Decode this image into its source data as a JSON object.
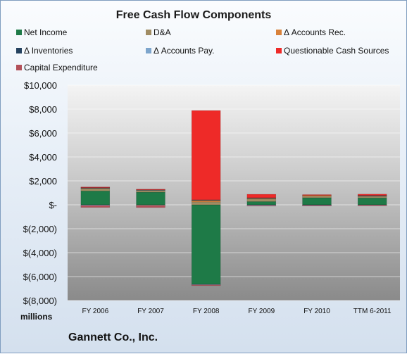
{
  "title": "Free Cash Flow Components",
  "units_label": "millions",
  "company": "Gannett Co., Inc.",
  "colors": {
    "Net Income": "#1e7a47",
    "D&A": "#a08c63",
    "Δ Accounts Rec.": "#d9823a",
    "Δ Inventories": "#25425f",
    "Δ Accounts Pay.": "#7da5cc",
    "Questionable Cash Sources": "#ee2a28",
    "Capital Expenditure": "#b35059"
  },
  "chart_data": {
    "type": "bar",
    "stacked": true,
    "title": "Free Cash Flow Components",
    "categories": [
      "FY 2006",
      "FY 2007",
      "FY 2008",
      "FY 2009",
      "FY 2010",
      "TTM 6-2011"
    ],
    "yticks": [
      "$10,000",
      "$8,000",
      "$6,000",
      "$4,000",
      "$2,000",
      "$-",
      "$(2,000)",
      "$(4,000)",
      "$(6,000)",
      "$(8,000)"
    ],
    "ylim": [
      -8000,
      10000
    ],
    "grid": true,
    "legend_position": "top",
    "series": [
      {
        "name": "Net Income",
        "values": [
          1160,
          1055,
          -6650,
          270,
          590,
          580
        ]
      },
      {
        "name": "D&A",
        "values": [
          200,
          200,
          240,
          210,
          190,
          180
        ]
      },
      {
        "name": "Δ Accounts Rec.",
        "values": [
          60,
          -30,
          140,
          90,
          10,
          10
        ]
      },
      {
        "name": "Δ Inventories",
        "values": [
          20,
          10,
          40,
          20,
          -10,
          10
        ]
      },
      {
        "name": "Δ Accounts Pay.",
        "values": [
          -50,
          -40,
          -30,
          -50,
          -30,
          -20
        ]
      },
      {
        "name": "Questionable Cash Sources",
        "values": [
          50,
          40,
          7460,
          290,
          60,
          110
        ]
      },
      {
        "name": "Capital Expenditure",
        "values": [
          -170,
          -160,
          -80,
          -50,
          -60,
          -70
        ]
      }
    ]
  }
}
